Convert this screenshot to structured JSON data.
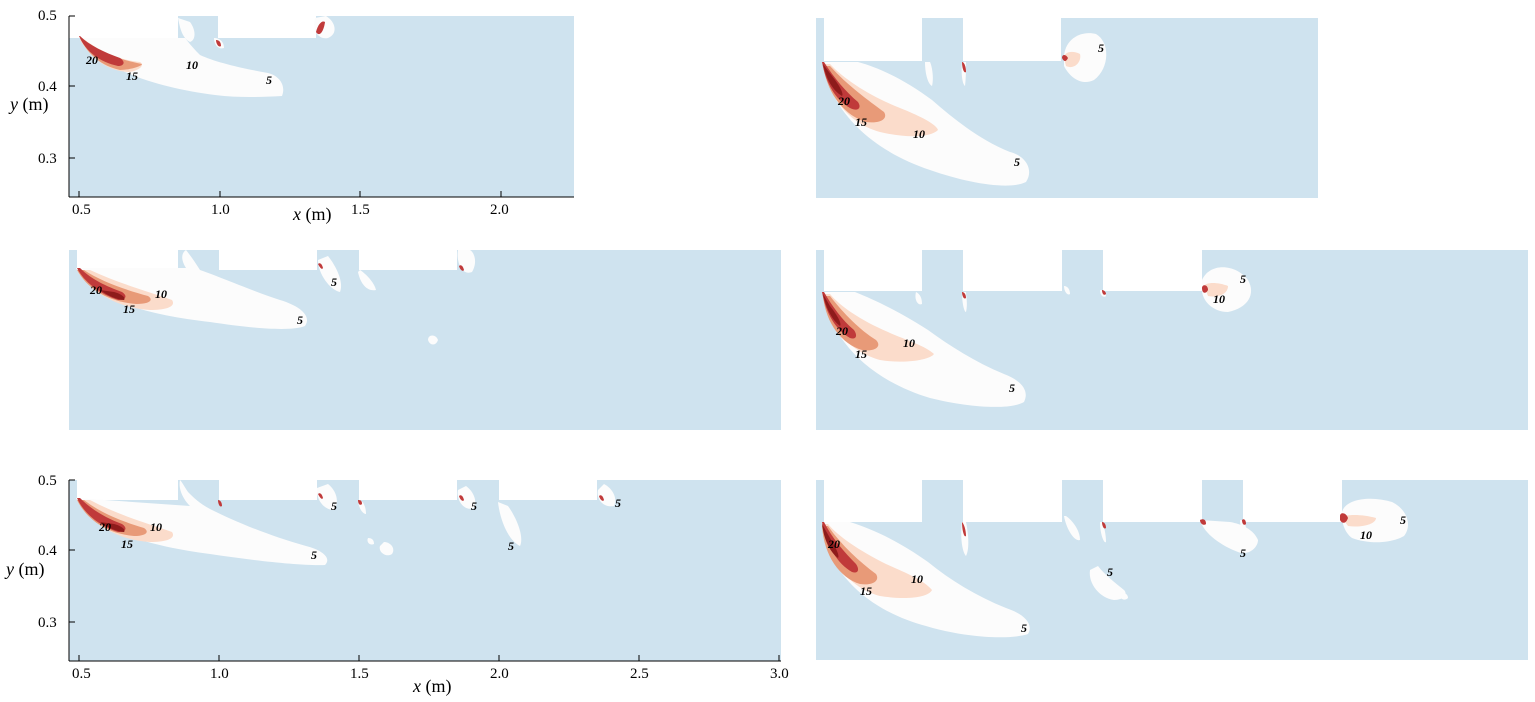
{
  "chart_data": {
    "type": "heatmap",
    "description_levels": [
      5,
      10,
      15,
      20
    ],
    "colors": {
      "background": "#cfe3ef",
      "level_5": "#fcfcfc",
      "level_10": "#fbdccb",
      "level_15": "#e89a78",
      "level_20": "#c03a3a",
      "level_max": "#8e1b1b"
    },
    "axes": {
      "xlabel_var": "x",
      "xlabel_unit": " (m)",
      "ylabel_var": "y",
      "ylabel_unit": " (m)",
      "y_ticks": [
        "0.5",
        "0.4",
        "0.3"
      ],
      "x_ticks_short": [
        "0.5",
        "1.0",
        "1.5",
        "2.0"
      ],
      "x_ticks_long": [
        "0.5",
        "1.0",
        "1.5",
        "2.0",
        "2.5",
        "3.0"
      ],
      "ylim": [
        0.25,
        0.5
      ]
    },
    "panels": [
      {
        "id": "top-left",
        "xlim": [
          0.45,
          2.25
        ],
        "blocks_x": [
          [
            0.84,
            0.98
          ],
          [
            1.36,
            1.36
          ]
        ],
        "contour_labels": [
          {
            "text": "20",
            "x": 0.54,
            "y": 0.434
          },
          {
            "text": "15",
            "x": 0.63,
            "y": 0.414
          },
          {
            "text": "10",
            "x": 0.83,
            "y": 0.425
          },
          {
            "text": "5",
            "x": 1.18,
            "y": 0.405
          }
        ]
      },
      {
        "id": "top-right",
        "contour_labels": [
          {
            "text": "20",
            "x": 0.11,
            "y": 0.455
          },
          {
            "text": "15",
            "x": 0.14,
            "y": 0.335
          },
          {
            "text": "10",
            "x": 0.295,
            "y": 0.255
          },
          {
            "text": "5",
            "x": 0.595,
            "y": 0.115
          },
          {
            "text": "5",
            "x": 0.82,
            "y": 0.83
          }
        ]
      },
      {
        "id": "middle-left",
        "contour_labels": [
          {
            "text": "20",
            "x": 0.045,
            "y": 0.77
          },
          {
            "text": "15",
            "x": 0.09,
            "y": 0.65
          },
          {
            "text": "10",
            "x": 0.135,
            "y": 0.73
          },
          {
            "text": "5",
            "x": 0.33,
            "y": 0.6
          },
          {
            "text": "5",
            "x": 0.375,
            "y": 0.84
          }
        ]
      },
      {
        "id": "middle-right",
        "contour_labels": [
          {
            "text": "20",
            "x": 0.042,
            "y": 0.55
          },
          {
            "text": "15",
            "x": 0.068,
            "y": 0.4
          },
          {
            "text": "10",
            "x": 0.135,
            "y": 0.48
          },
          {
            "text": "5",
            "x": 0.28,
            "y": 0.22
          },
          {
            "text": "5",
            "x": 0.6,
            "y": 0.83
          },
          {
            "text": "10",
            "x": 0.568,
            "y": 0.72
          }
        ]
      },
      {
        "id": "bottom-left",
        "xlim": [
          0.45,
          3.0
        ],
        "contour_labels": [
          {
            "text": "20",
            "x": 0.58,
            "y": 0.428
          },
          {
            "text": "15",
            "x": 0.62,
            "y": 0.41
          },
          {
            "text": "10",
            "x": 0.74,
            "y": 0.428
          },
          {
            "text": "5",
            "x": 1.3,
            "y": 0.384
          },
          {
            "text": "5",
            "x": 1.4,
            "y": 0.465
          },
          {
            "text": "5",
            "x": 1.91,
            "y": 0.465
          },
          {
            "text": "5",
            "x": 2.04,
            "y": 0.413
          },
          {
            "text": "5",
            "x": 2.41,
            "y": 0.468
          }
        ]
      },
      {
        "id": "bottom-right",
        "contour_labels": [
          {
            "text": "20",
            "x": 0.03,
            "y": 0.64
          },
          {
            "text": "15",
            "x": 0.073,
            "y": 0.38
          },
          {
            "text": "10",
            "x": 0.145,
            "y": 0.45
          },
          {
            "text": "5",
            "x": 0.297,
            "y": 0.17
          },
          {
            "text": "5",
            "x": 0.41,
            "y": 0.48
          },
          {
            "text": "5",
            "x": 0.603,
            "y": 0.59
          },
          {
            "text": "10",
            "x": 0.775,
            "y": 0.69
          },
          {
            "text": "5",
            "x": 0.831,
            "y": 0.78
          }
        ]
      }
    ]
  }
}
